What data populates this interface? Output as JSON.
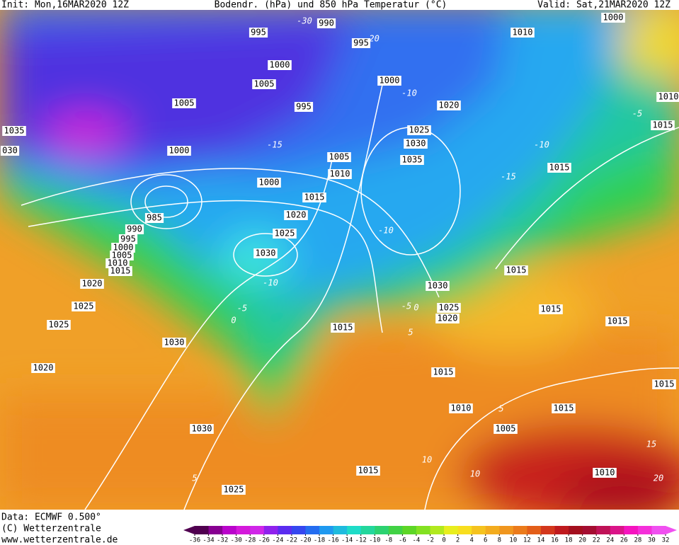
{
  "header": {
    "init": "Init: Mon,16MAR2020 12Z",
    "title": "Bodendr. (hPa) und 850 hPa Temperatur (°C)",
    "valid": "Valid: Sat,21MAR2020 12Z"
  },
  "pressure_labels": [
    "995",
    "990",
    "995",
    "1010",
    "1000",
    "1000",
    "1005",
    "1000",
    "1010",
    "1005",
    "995",
    "1020",
    "1035",
    "1025",
    "1015",
    "030",
    "1030",
    "1000",
    "1005",
    "1035",
    "1015",
    "1010",
    "1000",
    "1015",
    "1020",
    "985",
    "990",
    "995",
    "1000",
    "1005",
    "1010",
    "1025",
    "1030",
    "1015",
    "1015",
    "1020",
    "1030",
    "1025",
    "1025",
    "1015",
    "1020",
    "1025",
    "1015",
    "1015",
    "1030",
    "1020",
    "1015",
    "1015",
    "1010",
    "1015",
    "1030",
    "1005",
    "1015",
    "1010",
    "1025"
  ],
  "temperature_labels": [
    "-30",
    "-20",
    "-10",
    "-15",
    "-5",
    "-10",
    "-15",
    "-10",
    "-10",
    "-5",
    "0",
    "-5",
    "0",
    "5",
    "5",
    "10",
    "10",
    "15",
    "20",
    "5"
  ],
  "footer": {
    "data": "Data: ECMWF  0.500°",
    "copyright": "(C) Wetterzentrale",
    "url": "www.wetterzentrale.de"
  },
  "colorbar": {
    "labels": [
      -36,
      -34,
      -32,
      -30,
      -28,
      -26,
      -24,
      -22,
      -20,
      -18,
      -16,
      -14,
      -12,
      -10,
      -8,
      -6,
      -4,
      -2,
      0,
      2,
      4,
      6,
      8,
      10,
      12,
      14,
      16,
      18,
      20,
      22,
      24,
      26,
      28,
      30,
      32
    ]
  }
}
